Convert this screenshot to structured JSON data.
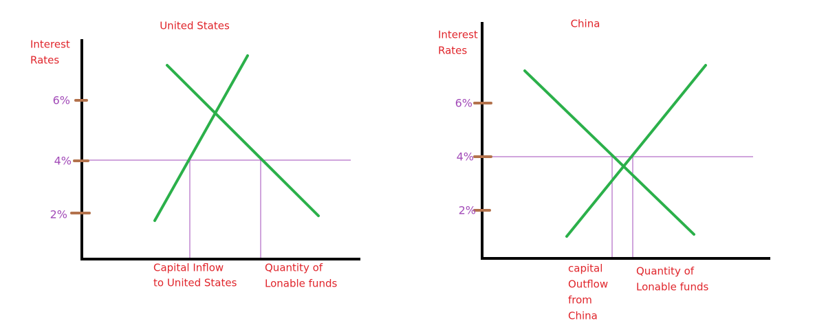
{
  "panels": [
    {
      "title": "United States",
      "y_label": [
        "Interest",
        "Rates"
      ],
      "ticks": [
        "6%",
        "4%",
        "2%"
      ],
      "x_labels": [
        [
          "Capital Inflow",
          "to United States"
        ],
        [
          "Quantity of",
          "Lonable funds"
        ]
      ]
    },
    {
      "title": "China",
      "y_label": [
        "Interest",
        "Rates"
      ],
      "ticks": [
        "6%",
        "4%",
        "2%"
      ],
      "x_labels": [
        [
          "capital",
          "Outflow",
          "from",
          "China"
        ],
        [
          "Quantity of",
          "Lonable funds"
        ]
      ]
    }
  ]
}
